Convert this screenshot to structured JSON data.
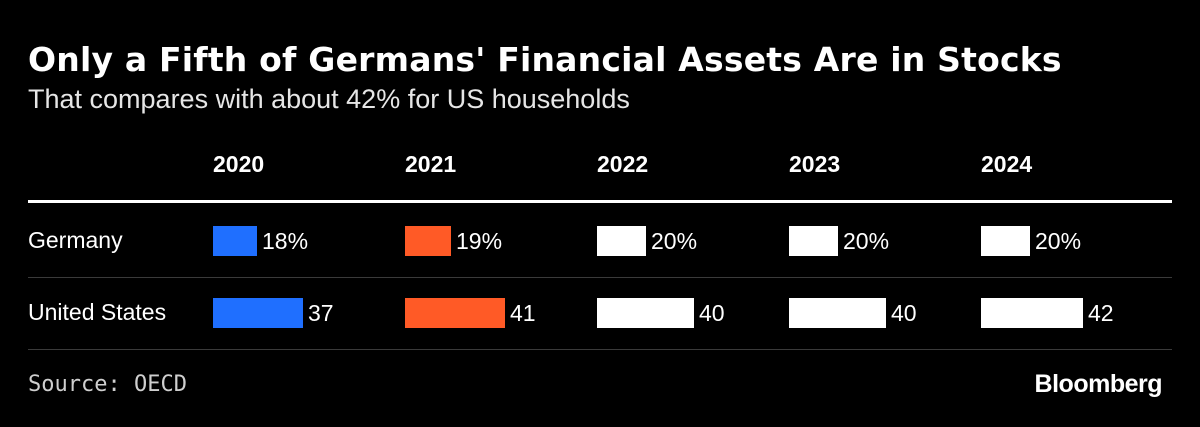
{
  "chart_data": {
    "type": "table",
    "title": "Only a Fifth of Germans' Financial Assets Are in Stocks",
    "subtitle": "That compares with about 42% for US households",
    "columns": [
      "2020",
      "2021",
      "2022",
      "2023",
      "2024"
    ],
    "rows": [
      {
        "name": "Germany",
        "values": [
          18,
          19,
          20,
          20,
          20
        ],
        "labels": [
          "18%",
          "19%",
          "20%",
          "20%",
          "20%"
        ]
      },
      {
        "name": "United States",
        "values": [
          37,
          41,
          40,
          40,
          42
        ],
        "labels": [
          "37",
          "41",
          "40",
          "40",
          "42"
        ]
      }
    ],
    "column_colors": [
      "#1f6fff",
      "#ff5a26",
      "#ffffff",
      "#ffffff",
      "#ffffff"
    ],
    "value_max": 42,
    "source": "Source: OECD",
    "brand": "Bloomberg"
  }
}
